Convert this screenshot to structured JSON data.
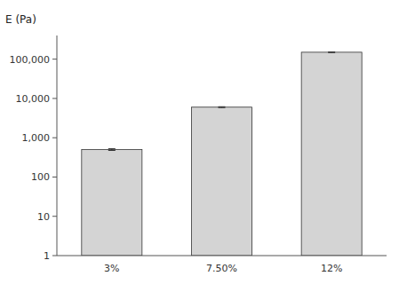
{
  "chart_data": {
    "type": "bar",
    "ylabel": "E (Pa)",
    "categories": [
      "3%",
      "7.50%",
      "12%"
    ],
    "values": [
      500,
      6000,
      150000
    ],
    "errors": [
      25,
      150,
      3000
    ],
    "color": "#d4d4d4",
    "log": "y",
    "ylim": [
      1,
      400000
    ],
    "yticks": [
      1,
      10,
      100,
      {
        "value": 1000,
        "label": "1,000"
      },
      {
        "value": 10000,
        "label": "10,000"
      },
      {
        "value": 100000,
        "label": "100,000"
      }
    ],
    "grid": false
  }
}
